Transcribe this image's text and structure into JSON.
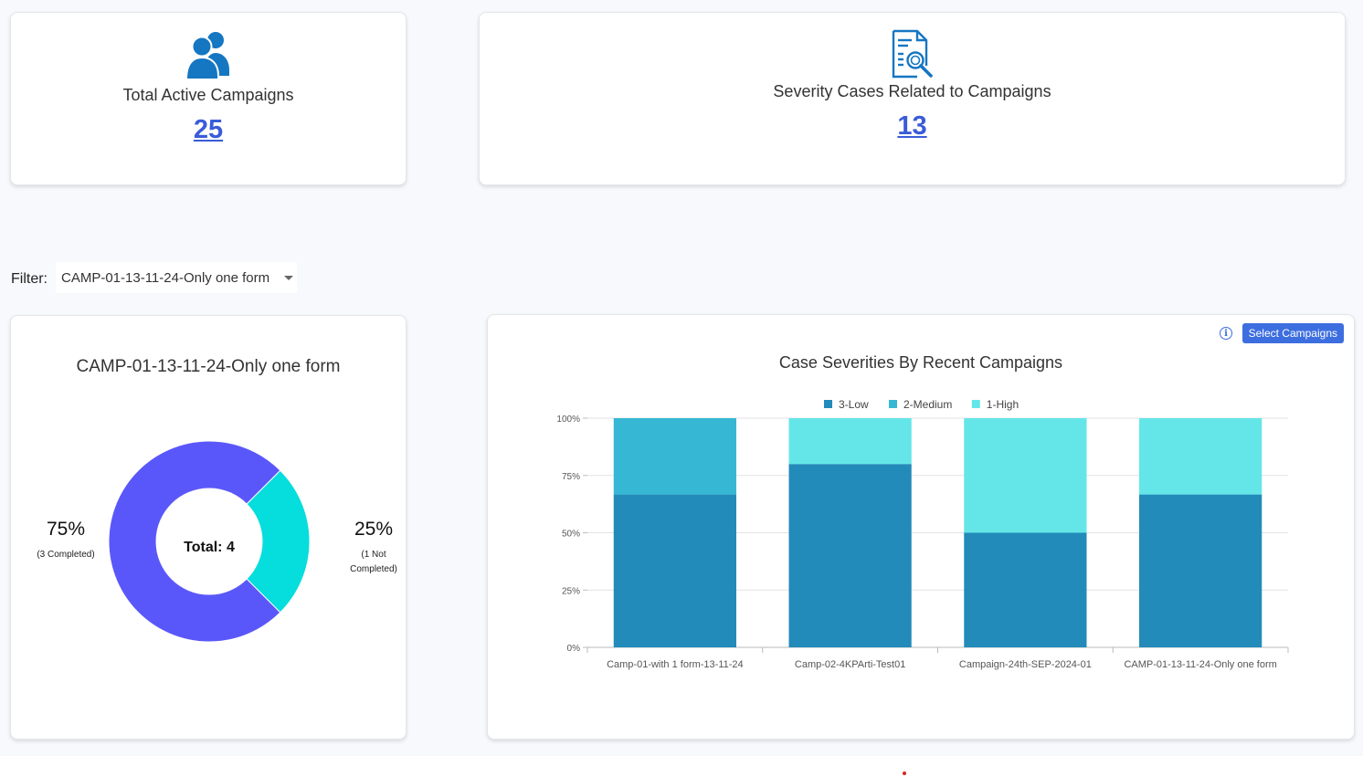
{
  "kpis": {
    "campaigns": {
      "icon": "users-icon",
      "label": "Total Active Campaigns",
      "value": "25"
    },
    "severity": {
      "icon": "document-search-icon",
      "label": "Severity Cases Related to Campaigns",
      "value": "13"
    }
  },
  "filter": {
    "label": "Filter:",
    "selected": "CAMP-01-13-11-24-Only one form"
  },
  "donut": {
    "title": "CAMP-01-13-11-24-Only one form",
    "center_text": "Total: 4",
    "left_pct": "75%",
    "left_sub": "(3 Completed)",
    "right_pct": "25%",
    "right_sub_line1": "(1 Not",
    "right_sub_line2": "Completed)",
    "colors": {
      "completed": "#5a57fa",
      "not_completed": "#06dddd"
    }
  },
  "bar_panel": {
    "select_button": "Select Campaigns",
    "info_icon": "info-icon",
    "info_glyph": "i"
  },
  "chart_data": [
    {
      "type": "pie",
      "title": "CAMP-01-13-11-24-Only one form",
      "series": [
        {
          "name": "Completed",
          "value": 3
        },
        {
          "name": "Not Completed",
          "value": 1
        }
      ],
      "total": 4
    },
    {
      "type": "bar",
      "stacked": true,
      "percent": true,
      "title": "Case Severities By Recent Campaigns",
      "categories": [
        "Camp-01-with 1 form-13-11-24",
        "Camp-02-4KPArti-Test01",
        "Campaign-24th-SEP-2024-01",
        "CAMP-01-13-11-24-Only one form"
      ],
      "series": [
        {
          "name": "3-Low",
          "color": "#228bba",
          "values": [
            66.7,
            80,
            50,
            66.7
          ]
        },
        {
          "name": "2-Medium",
          "color": "#36b7d4",
          "values": [
            33.3,
            0,
            0,
            0
          ]
        },
        {
          "name": "1-High",
          "color": "#64e6e8",
          "values": [
            0,
            20,
            50,
            33.3
          ]
        }
      ],
      "yticks": [
        "0%",
        "25%",
        "50%",
        "75%",
        "100%"
      ],
      "ylim": [
        0,
        100
      ],
      "grid": true,
      "legend": "top"
    }
  ]
}
